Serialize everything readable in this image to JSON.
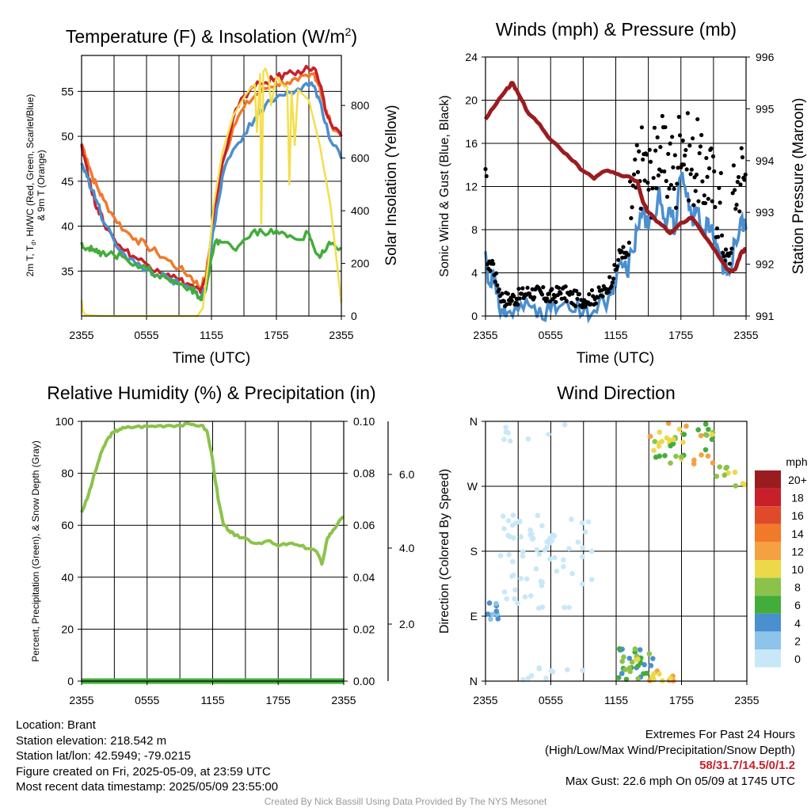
{
  "time_ticks": [
    "2355",
    "0555",
    "1155",
    "1755",
    "2355"
  ],
  "chart_data": [
    {
      "type": "line",
      "title": "Temperature (F) & Insolation (W/m2)",
      "title_main": "Temperature (F) & Insolation (W/m",
      "title_sup": "2",
      "title_close": ")",
      "xlabel": "Time (UTC)",
      "ylabel_line1": "2m T, T",
      "ylabel_sub": "d",
      "ylabel_line1_rest": ", HI/WC (Red, Green, Scarlet/Blue)",
      "ylabel_line2": "& 9m T (Orange)",
      "ylabel_right": "Solar Insolation (Yellow)",
      "x_hours": [
        0,
        24
      ],
      "ylim": [
        30,
        59
      ],
      "y2lim": [
        0,
        990
      ],
      "yticks": [
        35,
        40,
        45,
        50,
        55
      ],
      "y2ticks": [
        0,
        200,
        400,
        600,
        800
      ],
      "series": [
        {
          "color": "#f07a2a",
          "width": 3.5,
          "axis": "left",
          "x": [
            0,
            0.5,
            1,
            1.5,
            2,
            3,
            4,
            5,
            6,
            7,
            8,
            9,
            10,
            10.5,
            11,
            11.5,
            12,
            12.5,
            13,
            14,
            15,
            16,
            17,
            18,
            19,
            20,
            21,
            21.5,
            22,
            22.5,
            23,
            24
          ],
          "y": [
            49.2,
            47.5,
            45.5,
            44.2,
            43,
            41,
            39.5,
            38.6,
            37.8,
            37,
            36.2,
            35.3,
            34.5,
            33.8,
            33.2,
            34.5,
            39,
            43,
            47,
            51,
            53.2,
            54.5,
            55.3,
            55.8,
            56,
            56.2,
            56.6,
            57,
            55.5,
            53,
            51.5,
            50
          ]
        },
        {
          "color": "#c8202a",
          "width": 3.5,
          "axis": "left",
          "x": [
            0,
            0.5,
            1,
            1.5,
            2,
            3,
            4,
            5,
            6,
            7,
            8,
            9,
            10,
            10.5,
            11,
            11.5,
            12,
            12.5,
            13,
            14,
            15,
            16,
            17,
            18,
            19,
            20,
            21,
            21.5,
            22,
            22.5,
            23,
            24
          ],
          "y": [
            49.1,
            46.5,
            43.5,
            42,
            40.5,
            38.6,
            37.3,
            36.5,
            35.8,
            35.2,
            34.7,
            34,
            33.5,
            33.2,
            32.6,
            34,
            39,
            43.5,
            47,
            52,
            54.5,
            55.5,
            56,
            56.5,
            57,
            57.3,
            57.5,
            57.6,
            55.8,
            53,
            51.5,
            50
          ]
        },
        {
          "color": "#4a8fd0",
          "width": 3.5,
          "axis": "left",
          "x": [
            0,
            0.5,
            1,
            1.5,
            2,
            3,
            4,
            5,
            6,
            7,
            8,
            9,
            10,
            10.5,
            11,
            11.5,
            12,
            12.5,
            13,
            14,
            15,
            16,
            17,
            18,
            19,
            20,
            21,
            21.5,
            22,
            22.5,
            23,
            24
          ],
          "y": [
            47,
            45.5,
            44,
            42.5,
            40.5,
            38.4,
            36.8,
            35.8,
            35.1,
            34.6,
            34.1,
            33.5,
            33,
            32.7,
            32.1,
            33.2,
            38,
            42,
            45.5,
            48.5,
            50.2,
            52,
            53.5,
            54.3,
            55,
            55.3,
            55.6,
            55.6,
            54,
            51.5,
            49.5,
            47.5
          ]
        },
        {
          "color": "#43ad3b",
          "width": 3.5,
          "axis": "left",
          "x": [
            0,
            0.5,
            1,
            1.5,
            2,
            3,
            4,
            5,
            6,
            7,
            8,
            9,
            10,
            10.5,
            11,
            11.5,
            12,
            12.5,
            13,
            14,
            15,
            16,
            17,
            18,
            19,
            20,
            21,
            21.5,
            22,
            22.5,
            23,
            24
          ],
          "y": [
            38.2,
            37.5,
            37.3,
            37,
            37.2,
            36.8,
            36.5,
            35.8,
            35.2,
            34.6,
            34.1,
            33.6,
            33.2,
            32.6,
            31.8,
            33,
            36.5,
            38.5,
            38.2,
            37.5,
            38.5,
            39.6,
            39,
            39.5,
            38.8,
            38.5,
            39.2,
            37.5,
            36.5,
            37.2,
            38,
            37.6
          ]
        },
        {
          "color": "#f5de4a",
          "width": 2.5,
          "axis": "right",
          "x": [
            0,
            0.1,
            0.3,
            1,
            2,
            4,
            6,
            8,
            10,
            10.7,
            11.2,
            11.7,
            12.2,
            13,
            14,
            15,
            15.5,
            16,
            16.2,
            16.5,
            16.6,
            16.8,
            17,
            17.3,
            17.5,
            18,
            18.5,
            19,
            19.2,
            19.4,
            19.7,
            20,
            21,
            22,
            23,
            24
          ],
          "y": [
            60,
            20,
            5,
            2,
            0,
            0,
            0,
            0,
            0,
            0,
            30,
            200,
            420,
            620,
            760,
            830,
            860,
            880,
            700,
            920,
            350,
            930,
            940,
            900,
            800,
            910,
            880,
            870,
            500,
            850,
            650,
            860,
            820,
            650,
            420,
            50
          ]
        }
      ]
    },
    {
      "type": "line",
      "title": "Winds (mph) & Pressure (mb)",
      "xlabel": "Time (UTC)",
      "ylabel": "Sonic Wind & Gust (Blue, Black)",
      "ylabel_right": "Station Pressure (Maroon)",
      "x_hours": [
        0,
        24
      ],
      "ylim": [
        0,
        24
      ],
      "y2lim": [
        991,
        996
      ],
      "yticks": [
        0,
        4,
        8,
        12,
        16,
        20,
        24
      ],
      "y2ticks": [
        991,
        992,
        993,
        994,
        995,
        996
      ],
      "series": [
        {
          "name": "pressure",
          "color": "#9b1c20",
          "width": 5,
          "axis": "right",
          "x": [
            0,
            1,
            2,
            2.5,
            3,
            4,
            5,
            6,
            7,
            8,
            9,
            10,
            11,
            12,
            13,
            14,
            14.5,
            15,
            16,
            17,
            18,
            19,
            20,
            21,
            22,
            22.5,
            23,
            23.5,
            24
          ],
          "y": [
            994.8,
            995.1,
            995.4,
            995.5,
            995.3,
            994.9,
            994.7,
            994.4,
            994.2,
            994.0,
            993.8,
            993.65,
            993.8,
            993.75,
            993.7,
            993.6,
            993.2,
            993.0,
            992.8,
            992.6,
            992.8,
            992.9,
            992.6,
            992.3,
            992.0,
            991.85,
            991.9,
            992.2,
            992.3
          ]
        },
        {
          "name": "wind",
          "color": "#4a8fd0",
          "width": 3.5,
          "axis": "left",
          "x": [
            0,
            0.3,
            0.6,
            1,
            1.5,
            2,
            3,
            4,
            5,
            6,
            7,
            8,
            9,
            10,
            11,
            11.5,
            12,
            12.5,
            13,
            13.5,
            14,
            14.5,
            15,
            15.5,
            16,
            16.5,
            17,
            17.5,
            18,
            18.5,
            19,
            19.5,
            20,
            20.5,
            21,
            21.5,
            22,
            22.5,
            23,
            23.5,
            24
          ],
          "y": [
            6,
            3,
            4,
            2,
            0.5,
            0.3,
            0.5,
            1,
            0.8,
            0.5,
            1,
            0.4,
            0.3,
            0.5,
            1,
            2,
            3,
            5,
            4,
            6,
            8,
            10,
            8,
            9,
            12,
            9,
            10,
            8,
            13,
            11,
            9,
            10,
            8,
            9,
            7,
            6,
            4.5,
            4,
            7,
            9,
            8
          ]
        },
        {
          "name": "gust",
          "color": "#000000",
          "axis": "left",
          "points": "scatter"
        }
      ]
    },
    {
      "type": "line",
      "title": "Relative Humidity (%) & Precipitation (in)",
      "ylabel": "Percent, Precipitation (Green), & Snow Depth (Gray)",
      "x_hours": [
        0,
        24
      ],
      "ylim": [
        0,
        100
      ],
      "y2lim": [
        0,
        0.1
      ],
      "yticks": [
        0,
        20,
        40,
        60,
        80,
        100
      ],
      "y2ticks": [
        "0.00",
        "0.02",
        "0.04",
        "0.06",
        "0.08",
        "0.10"
      ],
      "y3ticks": [
        "2.0",
        "4.0",
        "6.0"
      ],
      "series": [
        {
          "name": "humidity",
          "color": "#8bc34a",
          "width": 4,
          "x": [
            0,
            0.5,
            1,
            1.5,
            2,
            2.5,
            3,
            3.5,
            4,
            5,
            6,
            7,
            8,
            9,
            10,
            11,
            11.5,
            12,
            12.5,
            13,
            13.5,
            14,
            15,
            16,
            17,
            18,
            19,
            20,
            21,
            21.5,
            22,
            22.5,
            23,
            23.5,
            24
          ],
          "y": [
            65,
            70,
            77,
            84,
            90,
            94,
            96,
            97,
            97.5,
            98,
            98,
            98.3,
            98.5,
            98.5,
            98.8,
            98.5,
            96,
            85,
            70,
            60,
            58,
            56,
            55,
            53,
            54,
            52,
            53,
            52,
            51,
            50,
            45,
            55,
            58,
            61,
            63
          ]
        },
        {
          "name": "precipitation",
          "color": "#43ad3b",
          "width": 7,
          "x": [
            0,
            24
          ],
          "y": [
            0,
            0
          ]
        }
      ]
    },
    {
      "type": "scatter",
      "title": "Wind Direction",
      "ylabel": "Direction (Colored By Speed)",
      "x_hours": [
        0,
        24
      ],
      "yticks": [
        "N",
        "E",
        "S",
        "W",
        "N"
      ],
      "colorbar_title": "mph",
      "colorbar_labels": [
        "20+",
        "18",
        "16",
        "14",
        "12",
        "10",
        "8",
        "6",
        "4",
        "2",
        "0"
      ],
      "colorbar_colors": [
        "#9b1c20",
        "#c8202a",
        "#e04a2a",
        "#f07a2a",
        "#f5a142",
        "#ecd94a",
        "#8bc34a",
        "#43ad3b",
        "#4a8fd0",
        "#8cc4ea",
        "#c8e8f8"
      ]
    }
  ],
  "footer": {
    "location": "Location: Brant",
    "elevation": "Station elevation: 218.542 m",
    "latlon": "Station lat/lon: 42.5949; -79.0215",
    "created": "Figure created on Fri, 2025-05-09, at 23:59 UTC",
    "recent": "Most recent data timestamp: 2025/05/09 23:55:00",
    "extremes_title": "Extremes For Past 24 Hours",
    "extremes_subtitle": "(High/Low/Max Wind/Precipitation/Snow Depth)",
    "extremes_values": "58/31.7/14.5/0/1.2",
    "max_gust": "Max Gust: 22.6 mph On 05/09 at 1745 UTC",
    "credit": "Created By Nick Bassill Using Data Provided By The NYS Mesonet"
  }
}
